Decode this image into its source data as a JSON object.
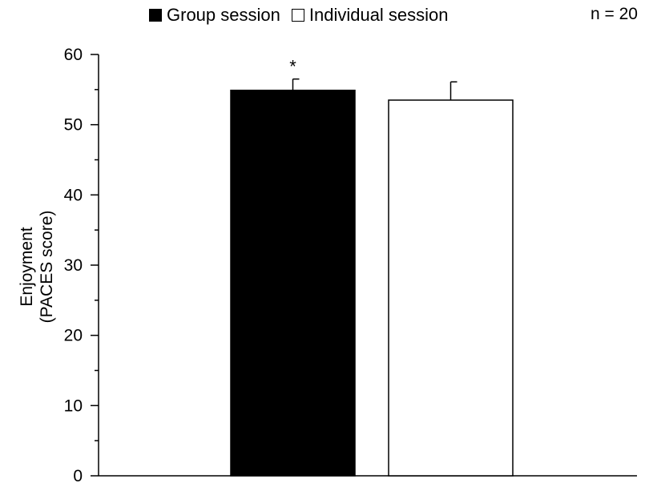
{
  "chart_data": {
    "type": "bar",
    "categories": [
      "Group session",
      "Individual session"
    ],
    "values": [
      54.9,
      53.5
    ],
    "errors": [
      1.6,
      2.6
    ],
    "colors": [
      "#000000",
      "#ffffff"
    ],
    "significance": [
      "*",
      ""
    ],
    "ylabel_line1": "Enjoyment",
    "ylabel_line2": "(PACES score)",
    "ylim": [
      0,
      60
    ],
    "yticks": [
      0,
      10,
      20,
      30,
      40,
      50,
      60
    ],
    "grid": false,
    "legend_position": "top-center",
    "legend": [
      "Group session",
      "Individual session"
    ],
    "annotation": "n = 20"
  }
}
